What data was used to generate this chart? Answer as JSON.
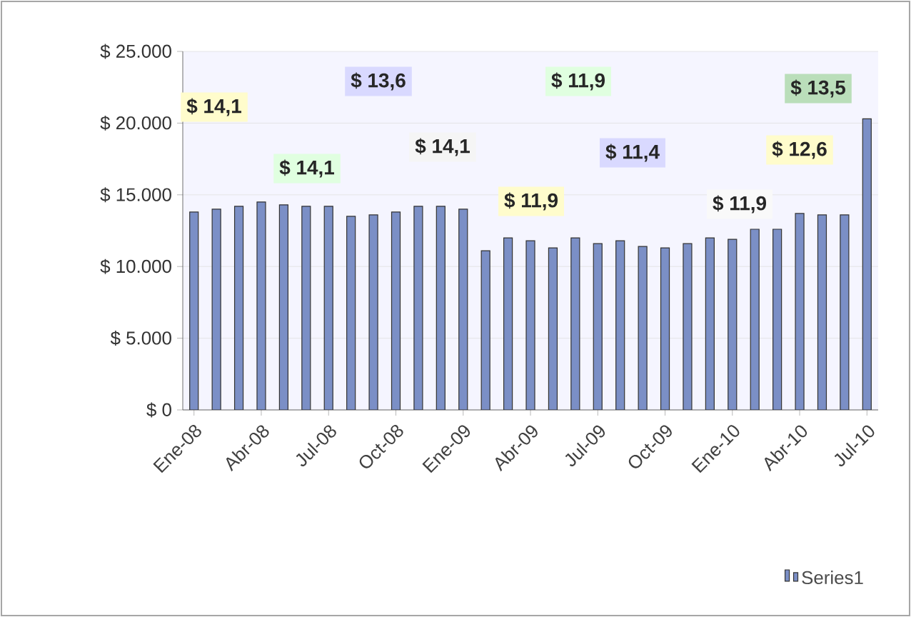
{
  "chart_data": {
    "type": "bar",
    "categories": [
      "Ene-08",
      null,
      null,
      "Abr-08",
      null,
      null,
      "Jul-08",
      null,
      null,
      "Oct-08",
      null,
      null,
      "Ene-09",
      null,
      null,
      "Abr-09",
      null,
      null,
      "Jul-09",
      null,
      null,
      "Oct-09",
      null,
      null,
      "Ene-10",
      null,
      null,
      "Abr-10",
      null,
      null,
      "Jul-10"
    ],
    "series": [
      {
        "name": "Series1",
        "color": "#7b8fc6",
        "values": [
          13800,
          14000,
          14200,
          14500,
          14300,
          14200,
          14200,
          13500,
          13600,
          13800,
          14200,
          14200,
          14000,
          11100,
          12000,
          11800,
          11300,
          12000,
          11600,
          11800,
          11400,
          11300,
          11600,
          12000,
          11900,
          12600,
          12600,
          13700,
          13600,
          13600,
          20300
        ]
      }
    ],
    "ylim": [
      0,
      25000
    ],
    "yticks": [
      {
        "value": 0,
        "label": "$ 0"
      },
      {
        "value": 5000,
        "label": "$ 5.000"
      },
      {
        "value": 10000,
        "label": "$ 10.000"
      },
      {
        "value": 15000,
        "label": "$ 15.000"
      },
      {
        "value": 20000,
        "label": "$ 20.000"
      },
      {
        "value": 25000,
        "label": "$ 25.000"
      }
    ],
    "grid": "y",
    "legend": "bottom right",
    "annotations": [
      "$ 14,1",
      "$ 13,6",
      "$ 11,9",
      "$ 13,5",
      "$ 14,1",
      "$ 14,1",
      "$ 11,9",
      "$ 11,4",
      "$ 12,6",
      "$ 11,9"
    ]
  }
}
